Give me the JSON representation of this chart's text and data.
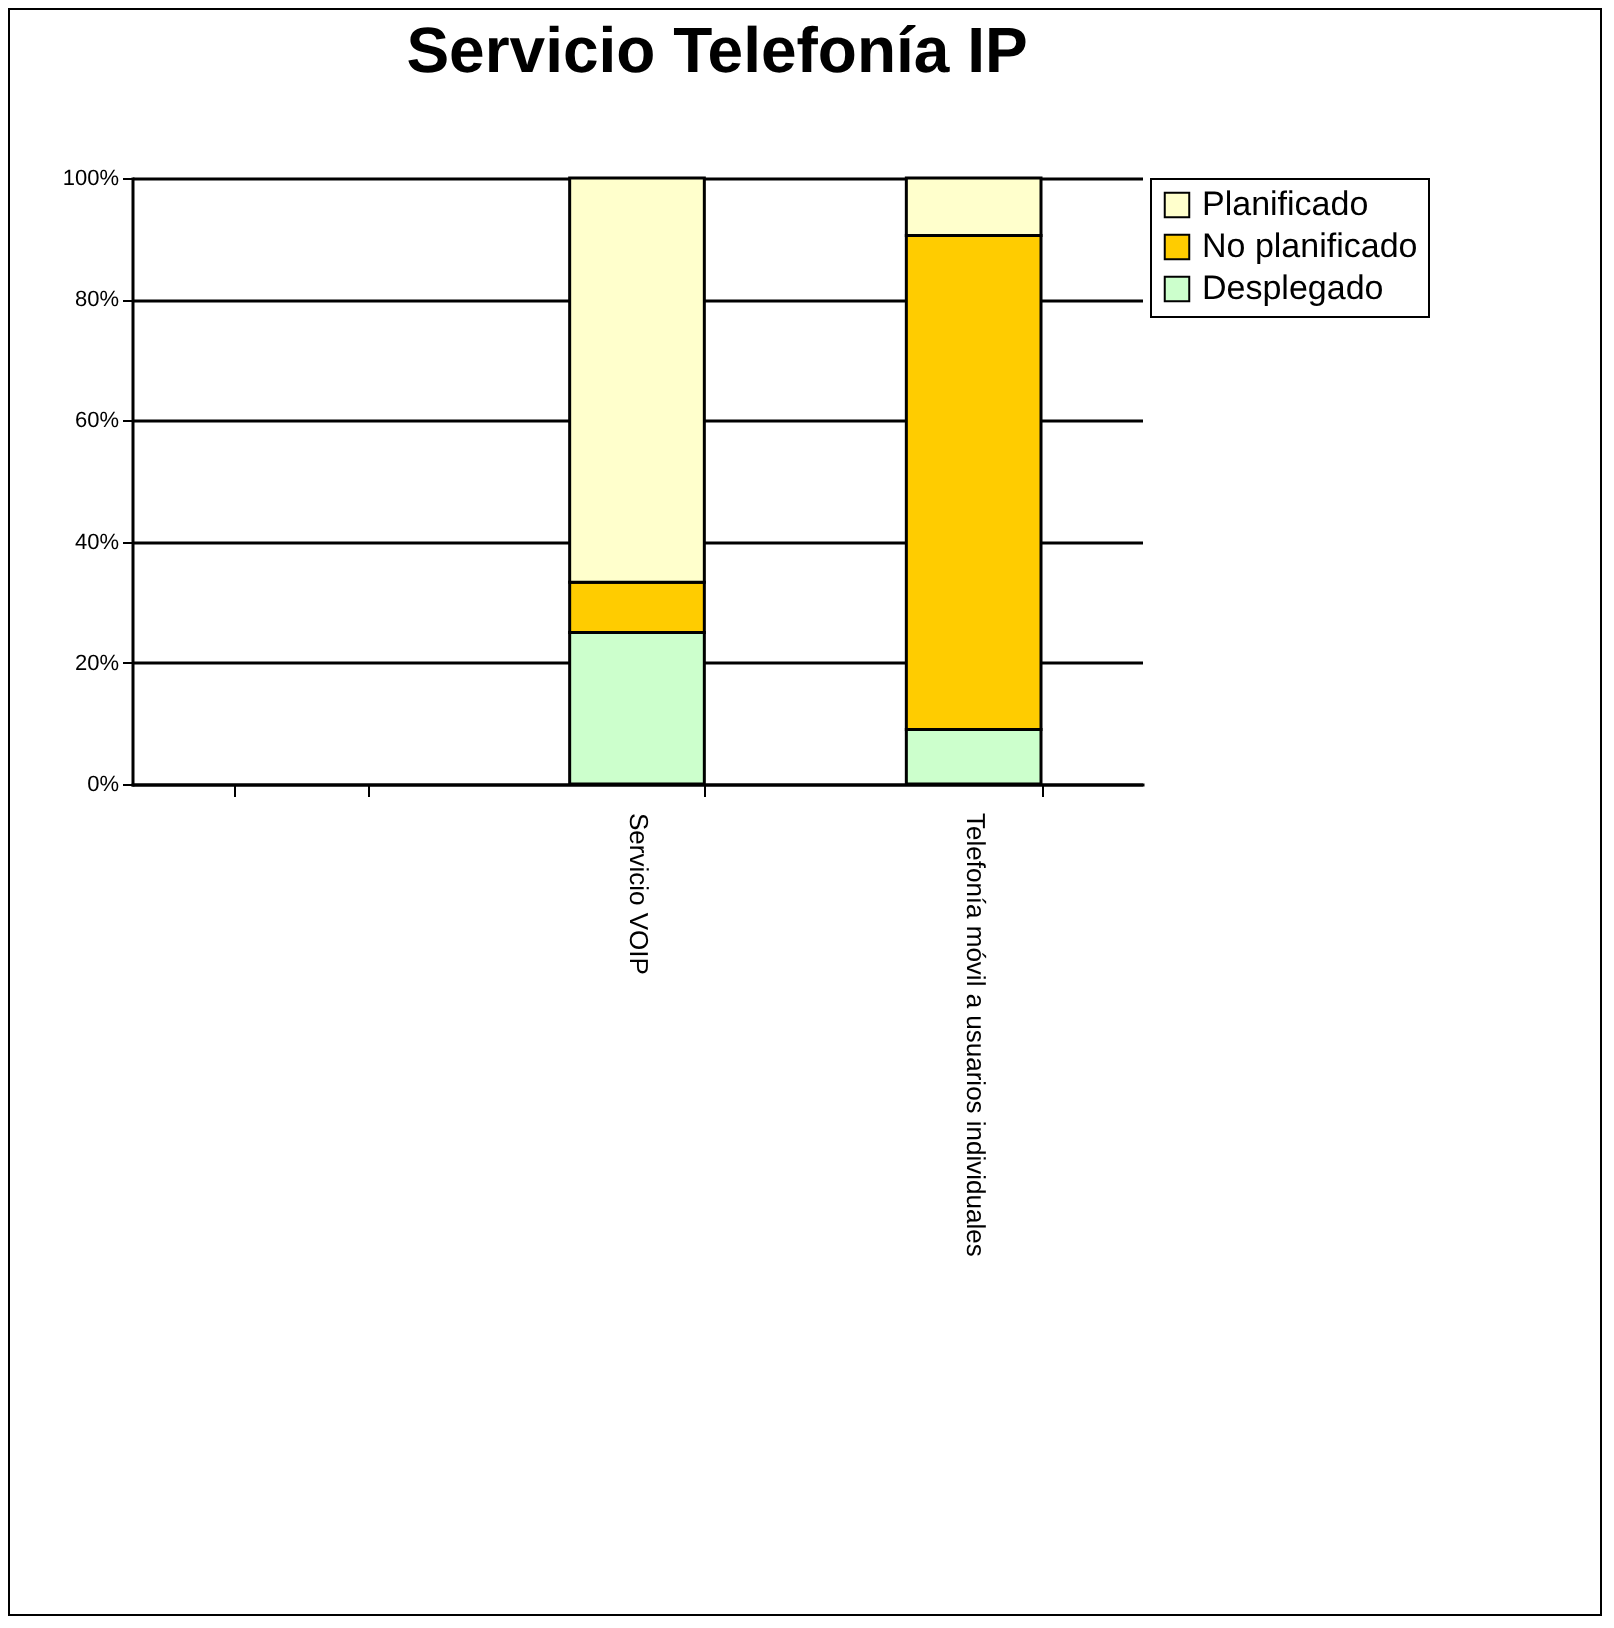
{
  "chart_data": {
    "type": "bar",
    "title": "Servicio Telefonía IP",
    "stacked": true,
    "categories": [
      null,
      "Servicio VOIP",
      "Telefonía móvil a usuarios individuales"
    ],
    "series": [
      {
        "name": "Desplegado",
        "color": "#ccffcc",
        "values": [
          null,
          25,
          9
        ]
      },
      {
        "name": "No planificado",
        "color": "#ffcc00",
        "values": [
          null,
          8.3,
          81.5
        ]
      },
      {
        "name": "Planificado",
        "color": "#ffffcc",
        "values": [
          null,
          66.7,
          9.5
        ]
      }
    ],
    "ylim": [
      0,
      100
    ],
    "yticks": [
      {
        "value": 0,
        "label": "0%"
      },
      {
        "value": 20,
        "label": "20%"
      },
      {
        "value": 40,
        "label": "40%"
      },
      {
        "value": 60,
        "label": "60%"
      },
      {
        "value": 80,
        "label": "80%"
      },
      {
        "value": 100,
        "label": "100%"
      }
    ],
    "grid": "y",
    "legend": "right"
  }
}
